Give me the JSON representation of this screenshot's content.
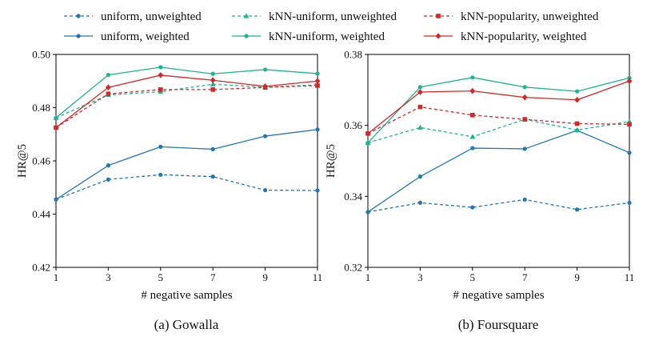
{
  "legend": {
    "entries": [
      {
        "label": "uniform, unweighted",
        "color": "#1f77b4",
        "dashed": true,
        "marker": "circle"
      },
      {
        "label": "uniform, weighted",
        "color": "#1f77b4",
        "dashed": false,
        "marker": "circle"
      },
      {
        "label": "kNN-uniform, unweighted",
        "color": "#17b890",
        "dashed": true,
        "marker": "triangle"
      },
      {
        "label": "kNN-uniform, weighted",
        "color": "#17b890",
        "dashed": false,
        "marker": "circle"
      },
      {
        "label": "kNN-popularity, unweighted",
        "color": "#d62728",
        "dashed": true,
        "marker": "square"
      },
      {
        "label": "kNN-popularity, weighted",
        "color": "#d62728",
        "dashed": false,
        "marker": "diamond"
      }
    ]
  },
  "chart_data": [
    {
      "type": "line",
      "title": "",
      "caption": "(a) Gowalla",
      "xlabel": "# negative samples",
      "ylabel": "HR@5",
      "x": [
        1,
        3,
        5,
        7,
        9,
        11
      ],
      "xlim": [
        1,
        11
      ],
      "ylim": [
        0.42,
        0.5
      ],
      "yticks": [
        0.42,
        0.44,
        0.46,
        0.48,
        0.5
      ],
      "ytick_labels": [
        "0.42",
        "0.44",
        "0.46",
        "0.48",
        "0.50"
      ],
      "grid": false,
      "series": [
        {
          "name": "uniform, unweighted",
          "values": [
            0.4455,
            0.453,
            0.4548,
            0.4541,
            0.449,
            0.4489
          ]
        },
        {
          "name": "uniform, weighted",
          "values": [
            0.4455,
            0.4583,
            0.4653,
            0.4644,
            0.4693,
            0.4718
          ]
        },
        {
          "name": "kNN-uniform, unweighted",
          "values": [
            0.4762,
            0.4848,
            0.486,
            0.4888,
            0.4877,
            0.4886
          ]
        },
        {
          "name": "kNN-uniform, weighted",
          "values": [
            0.4762,
            0.4923,
            0.4952,
            0.4927,
            0.4943,
            0.4928
          ]
        },
        {
          "name": "kNN-popularity, unweighted",
          "values": [
            0.4725,
            0.4852,
            0.4868,
            0.4868,
            0.4876,
            0.4883
          ]
        },
        {
          "name": "kNN-popularity, weighted",
          "values": [
            0.4725,
            0.4876,
            0.4922,
            0.4903,
            0.488,
            0.49
          ]
        }
      ]
    },
    {
      "type": "line",
      "title": "",
      "caption": "(b) Foursquare",
      "xlabel": "# negative samples",
      "ylabel": "HR@5",
      "x": [
        1,
        3,
        5,
        7,
        9,
        11
      ],
      "xlim": [
        1,
        11
      ],
      "ylim": [
        0.32,
        0.38
      ],
      "yticks": [
        0.32,
        0.34,
        0.36,
        0.38
      ],
      "ytick_labels": [
        "0.32",
        "0.34",
        "0.36",
        "0.38"
      ],
      "grid": false,
      "series": [
        {
          "name": "uniform, unweighted",
          "values": [
            0.3356,
            0.3382,
            0.3369,
            0.3391,
            0.3363,
            0.3382
          ]
        },
        {
          "name": "uniform, weighted",
          "values": [
            0.3356,
            0.3456,
            0.3536,
            0.3534,
            0.3586,
            0.3523
          ]
        },
        {
          "name": "kNN-uniform, unweighted",
          "values": [
            0.3551,
            0.3594,
            0.3568,
            0.3617,
            0.3587,
            0.3611
          ]
        },
        {
          "name": "kNN-uniform, weighted",
          "values": [
            0.3551,
            0.3708,
            0.3735,
            0.3708,
            0.3696,
            0.3734
          ]
        },
        {
          "name": "kNN-popularity, unweighted",
          "values": [
            0.3577,
            0.3652,
            0.3629,
            0.3617,
            0.3605,
            0.3603
          ]
        },
        {
          "name": "kNN-popularity, weighted",
          "values": [
            0.3577,
            0.3694,
            0.3697,
            0.3679,
            0.3672,
            0.3725
          ]
        }
      ]
    }
  ]
}
